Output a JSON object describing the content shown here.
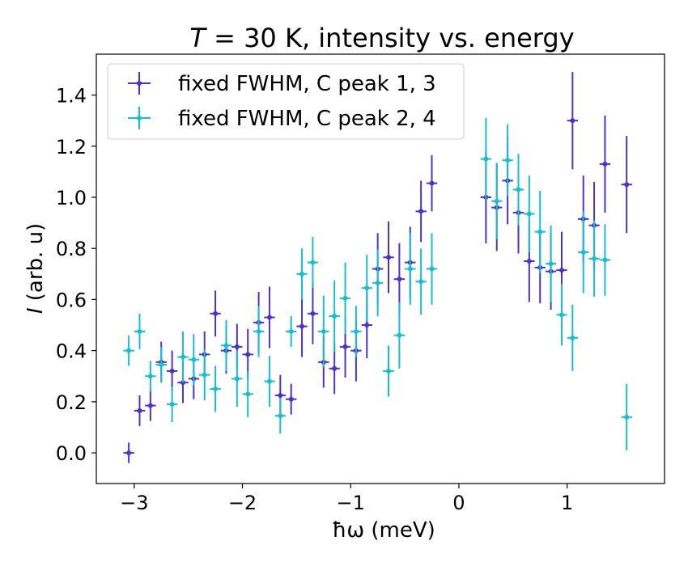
{
  "chart_data": {
    "type": "scatter",
    "title_prefix": "T",
    "title_suffix": " = 30 K, intensity vs. energy",
    "xlabel": "ħω (meV)",
    "ylabel_symbol": "I",
    "ylabel_rest": " (arb. u)",
    "xlim": [
      -3.35,
      1.9
    ],
    "ylim": [
      -0.12,
      1.56
    ],
    "xticks": [
      -3,
      -2,
      -1,
      0,
      1
    ],
    "xtick_labels": [
      "−3",
      "−2",
      "−1",
      "0",
      "1"
    ],
    "yticks": [
      0.0,
      0.2,
      0.4,
      0.6,
      0.8,
      1.0,
      1.2,
      1.4
    ],
    "ytick_labels": [
      "0.0",
      "0.2",
      "0.4",
      "0.6",
      "0.8",
      "1.0",
      "1.2",
      "1.4"
    ],
    "legend_position": "top-left",
    "series": [
      {
        "name": "fixed FWHM, C peak 1, 3",
        "color": "#4b32c8",
        "x": [
          -3.05,
          -2.95,
          -2.85,
          -2.75,
          -2.65,
          -2.55,
          -2.45,
          -2.35,
          -2.25,
          -2.15,
          -2.05,
          -1.95,
          -1.85,
          -1.75,
          -1.65,
          -1.55,
          -1.45,
          -1.35,
          -1.25,
          -1.15,
          -1.05,
          -0.95,
          -0.85,
          -0.75,
          -0.65,
          -0.55,
          -0.45,
          -0.35,
          -0.25,
          0.25,
          0.35,
          0.45,
          0.55,
          0.65,
          0.75,
          0.85,
          0.95,
          1.05,
          1.15,
          1.25,
          1.35,
          1.55
        ],
        "y": [
          0.0,
          0.165,
          0.185,
          0.355,
          0.32,
          0.275,
          0.29,
          0.385,
          0.545,
          0.4,
          0.415,
          0.385,
          0.51,
          0.53,
          0.225,
          0.21,
          0.495,
          0.545,
          0.355,
          0.33,
          0.415,
          0.4,
          0.5,
          0.72,
          0.765,
          0.68,
          0.745,
          0.945,
          1.055,
          1.0,
          0.96,
          1.065,
          0.94,
          0.75,
          0.725,
          0.71,
          0.715,
          1.3,
          0.915,
          0.89,
          1.13,
          1.05
        ],
        "xerr": 0.05,
        "yerr": [
          0.04,
          0.06,
          0.06,
          0.08,
          0.08,
          0.08,
          0.08,
          0.09,
          0.09,
          0.09,
          0.09,
          0.1,
          0.12,
          0.12,
          0.08,
          0.06,
          0.12,
          0.12,
          0.1,
          0.1,
          0.12,
          0.12,
          0.13,
          0.14,
          0.14,
          0.14,
          0.14,
          0.12,
          0.11,
          0.18,
          0.17,
          0.17,
          0.16,
          0.16,
          0.14,
          0.15,
          0.15,
          0.19,
          0.17,
          0.17,
          0.19,
          0.19
        ]
      },
      {
        "name": "fixed FWHM, C peak 2, 4",
        "color": "#17becf",
        "x": [
          -3.05,
          -2.95,
          -2.85,
          -2.75,
          -2.65,
          -2.55,
          -2.45,
          -2.35,
          -2.25,
          -2.15,
          -2.05,
          -1.95,
          -1.85,
          -1.75,
          -1.65,
          -1.55,
          -1.45,
          -1.35,
          -1.25,
          -1.15,
          -1.05,
          -0.95,
          -0.85,
          -0.75,
          -0.65,
          -0.55,
          -0.45,
          -0.35,
          -0.25,
          0.25,
          0.35,
          0.45,
          0.55,
          0.65,
          0.75,
          0.85,
          0.95,
          1.05,
          1.15,
          1.25,
          1.35,
          1.55
        ],
        "y": [
          0.4,
          0.475,
          0.3,
          0.345,
          0.19,
          0.375,
          0.365,
          0.305,
          0.25,
          0.42,
          0.29,
          0.23,
          0.475,
          0.28,
          0.145,
          0.475,
          0.7,
          0.745,
          0.475,
          0.535,
          0.605,
          0.475,
          0.645,
          0.665,
          0.32,
          0.46,
          0.72,
          0.67,
          0.72,
          1.15,
          0.985,
          1.145,
          1.03,
          0.935,
          0.865,
          0.74,
          0.54,
          0.45,
          0.785,
          0.76,
          0.755,
          0.14
        ],
        "xerr": 0.05,
        "yerr": [
          0.06,
          0.07,
          0.06,
          0.07,
          0.07,
          0.1,
          0.1,
          0.1,
          0.09,
          0.1,
          0.11,
          0.09,
          0.1,
          0.1,
          0.07,
          0.06,
          0.1,
          0.1,
          0.14,
          0.14,
          0.14,
          0.1,
          0.13,
          0.13,
          0.1,
          0.13,
          0.14,
          0.13,
          0.14,
          0.16,
          0.15,
          0.14,
          0.14,
          0.15,
          0.16,
          0.15,
          0.12,
          0.13,
          0.16,
          0.15,
          0.14,
          0.13
        ]
      }
    ]
  }
}
